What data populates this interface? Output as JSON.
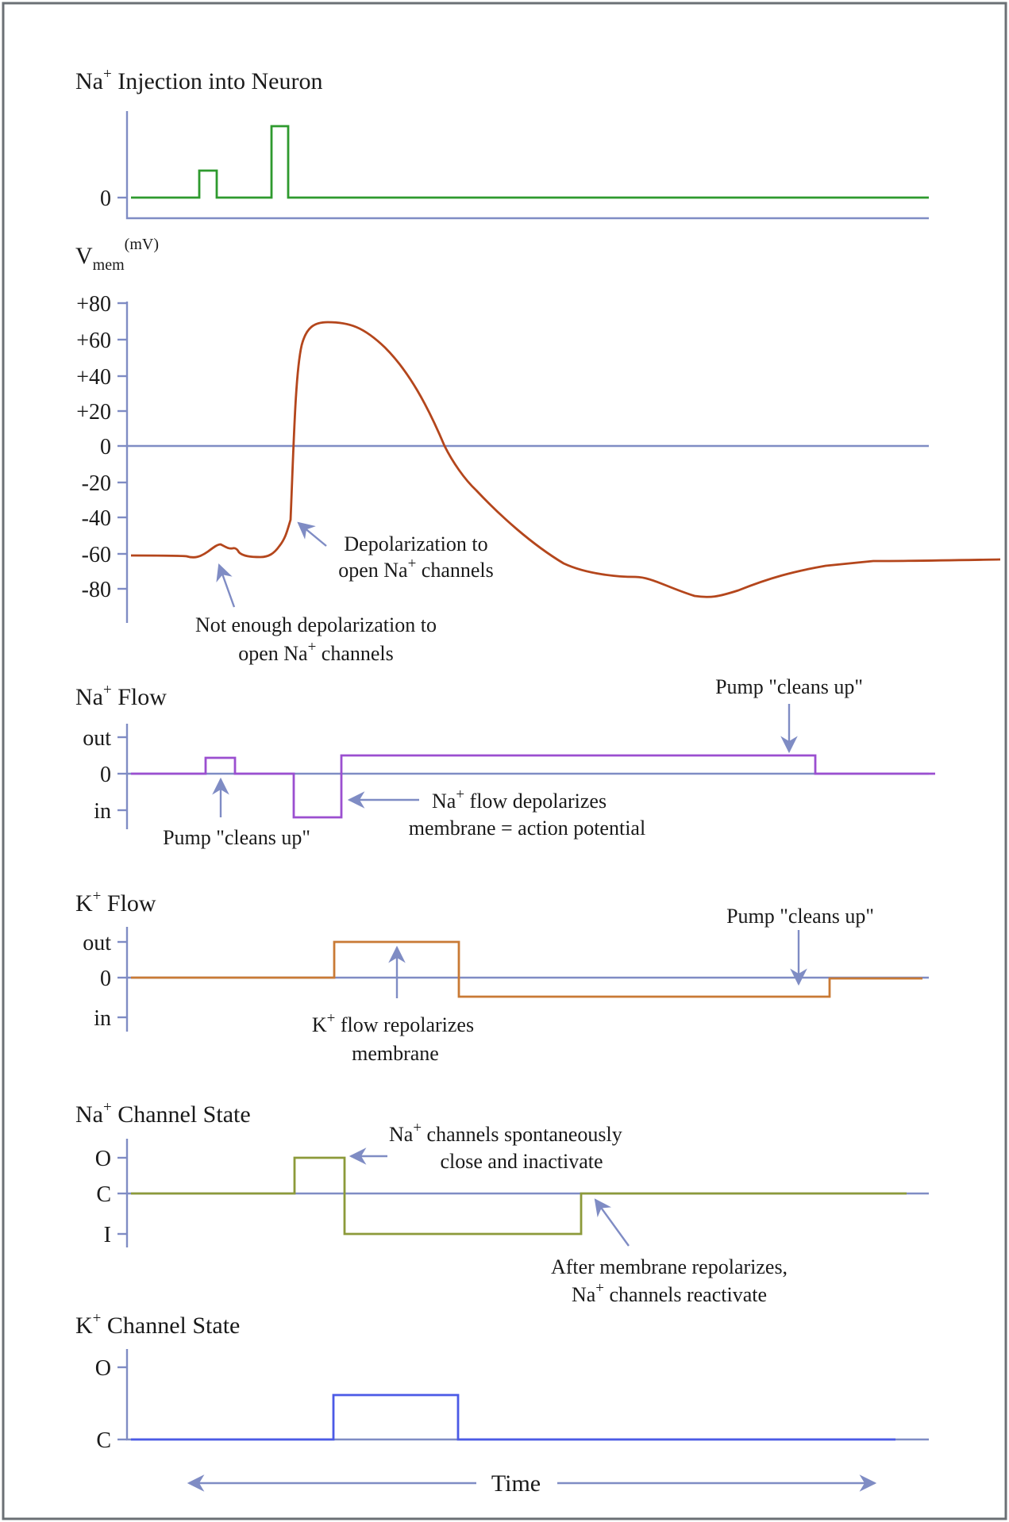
{
  "frame": {
    "border_color": "#6b7075"
  },
  "colors": {
    "axis": "#7f8cc4",
    "na_injection": "#2e9a2e",
    "vmem": "#b4461c",
    "na_flow": "#9b4fd0",
    "k_flow": "#c97a35",
    "na_channel": "#8c9a3a",
    "k_channel": "#4b5ae6"
  },
  "panels": {
    "injection": {
      "title_pre": "Na",
      "title_sup": "+",
      "title_post": " Injection into Neuron",
      "ticks": [
        "0"
      ]
    },
    "vmem": {
      "title_main": "V",
      "title_sub": "mem",
      "title_unit": "(mV)",
      "ticks": [
        "+80",
        "+60",
        "+40",
        "+20",
        "0",
        "-20",
        "-40",
        "-60",
        "-80"
      ],
      "note_depol": {
        "line1": "Depolarization to",
        "line2_pre": "open Na",
        "line2_sup": "+",
        "line2_post": " channels"
      },
      "note_subthreshold": {
        "line1": "Not enough depolarization to",
        "line2_pre": "open Na",
        "line2_sup": "+",
        "line2_post": " channels"
      }
    },
    "na_flow": {
      "title_pre": "Na",
      "title_sup": "+",
      "title_post": " Flow",
      "ticks": [
        "out",
        "0",
        "in"
      ],
      "note_pump_right": "Pump \"cleans up\"",
      "note_pump_left": "Pump \"cleans up\"",
      "note_ap": {
        "line1_pre": "Na",
        "line1_sup": "+",
        "line1_post": " flow depolarizes",
        "line2": "membrane = action potential"
      }
    },
    "k_flow": {
      "title_pre": "K",
      "title_sup": "+",
      "title_post": " Flow",
      "ticks": [
        "out",
        "0",
        "in"
      ],
      "note_pump": "Pump \"cleans up\"",
      "note_repol": {
        "line1_pre": "K",
        "line1_sup": "+",
        "line1_post": " flow repolarizes",
        "line2": "membrane"
      }
    },
    "na_channel": {
      "title_pre": "Na",
      "title_sup": "+",
      "title_post": " Channel State",
      "ticks": [
        "O",
        "C",
        "I"
      ],
      "note_inactivate": {
        "line1_pre": "Na",
        "line1_sup": "+",
        "line1_post": " channels spontaneously",
        "line2": "close and inactivate"
      },
      "note_reactivate": {
        "line1": "After membrane repolarizes,",
        "line2_pre": "Na",
        "line2_sup": "+",
        "line2_post": " channels reactivate"
      }
    },
    "k_channel": {
      "title_pre": "K",
      "title_sup": "+",
      "title_post": " Channel State",
      "ticks": [
        "O",
        "C"
      ]
    }
  },
  "time_label": "Time"
}
